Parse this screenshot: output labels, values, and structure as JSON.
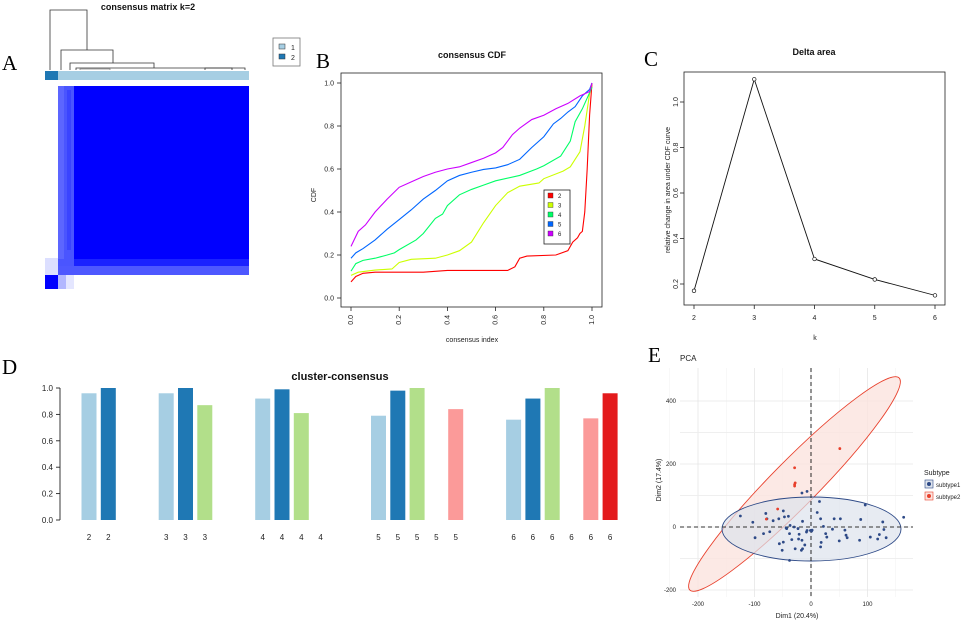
{
  "panel_labels": {
    "a": "A",
    "b": "B",
    "c": "C",
    "d": "D",
    "e": "E"
  },
  "chart_data": [
    {
      "panel": "A",
      "type": "heatmap",
      "title": "consensus matrix k=2",
      "legend": [
        {
          "label": "1",
          "color": "#a6cee3"
        },
        {
          "label": "2",
          "color": "#1f78b4"
        }
      ],
      "legend_placement": "top-right",
      "heat_color": "#0000ff"
    },
    {
      "panel": "B",
      "type": "line",
      "title": "consensus CDF",
      "xlabel": "consensus index",
      "ylabel": "CDF",
      "xlim": [
        0,
        1
      ],
      "ylim": [
        0,
        1
      ],
      "xticks": [
        "0.0",
        "0.2",
        "0.4",
        "0.6",
        "0.8",
        "1.0"
      ],
      "yticks": [
        "0.0",
        "0.2",
        "0.4",
        "0.6",
        "0.8",
        "1.0"
      ],
      "legend_placement": "right",
      "series": [
        {
          "name": "2",
          "color": "#ff0000",
          "points": [
            [
              0,
              0.075
            ],
            [
              0.02,
              0.1
            ],
            [
              0.05,
              0.115
            ],
            [
              0.1,
              0.12
            ],
            [
              0.3,
              0.12
            ],
            [
              0.4,
              0.128
            ],
            [
              0.65,
              0.128
            ],
            [
              0.68,
              0.145
            ],
            [
              0.7,
              0.185
            ],
            [
              0.73,
              0.195
            ],
            [
              0.85,
              0.2
            ],
            [
              0.9,
              0.22
            ],
            [
              0.92,
              0.26
            ],
            [
              0.94,
              0.28
            ],
            [
              0.95,
              0.3
            ],
            [
              0.96,
              0.31
            ],
            [
              0.97,
              0.4
            ],
            [
              0.98,
              0.6
            ],
            [
              0.99,
              0.85
            ],
            [
              1.0,
              1.0
            ]
          ]
        },
        {
          "name": "3",
          "color": "#ccff00",
          "points": [
            [
              0,
              0.105
            ],
            [
              0.03,
              0.12
            ],
            [
              0.1,
              0.13
            ],
            [
              0.17,
              0.135
            ],
            [
              0.2,
              0.165
            ],
            [
              0.25,
              0.18
            ],
            [
              0.35,
              0.185
            ],
            [
              0.4,
              0.2
            ],
            [
              0.45,
              0.22
            ],
            [
              0.5,
              0.26
            ],
            [
              0.55,
              0.35
            ],
            [
              0.6,
              0.43
            ],
            [
              0.65,
              0.49
            ],
            [
              0.7,
              0.52
            ],
            [
              0.78,
              0.535
            ],
            [
              0.8,
              0.555
            ],
            [
              0.88,
              0.59
            ],
            [
              0.91,
              0.61
            ],
            [
              0.95,
              0.68
            ],
            [
              0.97,
              0.8
            ],
            [
              0.99,
              0.95
            ],
            [
              1.0,
              1.0
            ]
          ]
        },
        {
          "name": "4",
          "color": "#00ff66",
          "points": [
            [
              0,
              0.125
            ],
            [
              0.02,
              0.16
            ],
            [
              0.05,
              0.175
            ],
            [
              0.1,
              0.185
            ],
            [
              0.15,
              0.2
            ],
            [
              0.18,
              0.21
            ],
            [
              0.2,
              0.225
            ],
            [
              0.27,
              0.27
            ],
            [
              0.3,
              0.3
            ],
            [
              0.35,
              0.37
            ],
            [
              0.38,
              0.39
            ],
            [
              0.4,
              0.43
            ],
            [
              0.45,
              0.48
            ],
            [
              0.5,
              0.505
            ],
            [
              0.55,
              0.525
            ],
            [
              0.6,
              0.545
            ],
            [
              0.7,
              0.57
            ],
            [
              0.77,
              0.6
            ],
            [
              0.8,
              0.615
            ],
            [
              0.87,
              0.66
            ],
            [
              0.91,
              0.73
            ],
            [
              0.93,
              0.82
            ],
            [
              0.96,
              0.88
            ],
            [
              0.98,
              0.93
            ],
            [
              1.0,
              0.98
            ]
          ]
        },
        {
          "name": "5",
          "color": "#0066ff",
          "points": [
            [
              0,
              0.185
            ],
            [
              0.02,
              0.21
            ],
            [
              0.05,
              0.23
            ],
            [
              0.1,
              0.27
            ],
            [
              0.15,
              0.32
            ],
            [
              0.2,
              0.365
            ],
            [
              0.25,
              0.41
            ],
            [
              0.3,
              0.46
            ],
            [
              0.35,
              0.5
            ],
            [
              0.4,
              0.545
            ],
            [
              0.45,
              0.57
            ],
            [
              0.5,
              0.585
            ],
            [
              0.55,
              0.598
            ],
            [
              0.6,
              0.605
            ],
            [
              0.65,
              0.62
            ],
            [
              0.7,
              0.645
            ],
            [
              0.75,
              0.7
            ],
            [
              0.8,
              0.75
            ],
            [
              0.84,
              0.81
            ],
            [
              0.87,
              0.835
            ],
            [
              0.9,
              0.865
            ],
            [
              0.93,
              0.89
            ],
            [
              0.96,
              0.94
            ],
            [
              0.99,
              0.97
            ],
            [
              1.0,
              1.0
            ]
          ]
        },
        {
          "name": "6",
          "color": "#cc00ff",
          "points": [
            [
              0,
              0.24
            ],
            [
              0.03,
              0.31
            ],
            [
              0.06,
              0.34
            ],
            [
              0.1,
              0.4
            ],
            [
              0.15,
              0.46
            ],
            [
              0.2,
              0.515
            ],
            [
              0.25,
              0.54
            ],
            [
              0.3,
              0.565
            ],
            [
              0.35,
              0.585
            ],
            [
              0.4,
              0.6
            ],
            [
              0.45,
              0.61
            ],
            [
              0.5,
              0.63
            ],
            [
              0.55,
              0.65
            ],
            [
              0.6,
              0.675
            ],
            [
              0.63,
              0.7
            ],
            [
              0.67,
              0.76
            ],
            [
              0.7,
              0.79
            ],
            [
              0.75,
              0.83
            ],
            [
              0.8,
              0.85
            ],
            [
              0.85,
              0.88
            ],
            [
              0.9,
              0.905
            ],
            [
              0.95,
              0.94
            ],
            [
              0.99,
              0.96
            ],
            [
              1.0,
              1.0
            ]
          ]
        }
      ]
    },
    {
      "panel": "C",
      "type": "line",
      "title": "Delta area",
      "xlabel": "k",
      "ylabel": "relative change in area under CDF curve",
      "xticks": [
        "2",
        "3",
        "4",
        "5",
        "6"
      ],
      "yticks": [
        "0.2",
        "0.4",
        "0.6",
        "0.8",
        "1.0"
      ],
      "x": [
        2,
        3,
        4,
        5,
        6
      ],
      "y": [
        0.17,
        1.1,
        0.31,
        0.22,
        0.15
      ]
    },
    {
      "panel": "D",
      "type": "bar",
      "title": "cluster-consensus",
      "ylim": [
        0,
        1
      ],
      "yticks": [
        "0.0",
        "0.2",
        "0.4",
        "0.6",
        "0.8",
        "1.0"
      ],
      "cluster_colors": [
        "#a6cee3",
        "#1f78b4",
        "#b2df8a",
        "#33a02c",
        "#fb9a99",
        "#e31a1c"
      ],
      "groups": [
        {
          "k": "2",
          "values": [
            0.96,
            1.0
          ]
        },
        {
          "k": "3",
          "values": [
            0.96,
            1.0,
            0.87
          ]
        },
        {
          "k": "4",
          "values": [
            0.92,
            0.99,
            0.81,
            null
          ]
        },
        {
          "k": "5",
          "values": [
            0.79,
            0.98,
            1.0,
            null,
            0.84
          ]
        },
        {
          "k": "6",
          "values": [
            0.76,
            0.92,
            1.0,
            null,
            0.77,
            0.96
          ]
        }
      ]
    },
    {
      "panel": "E",
      "type": "scatter",
      "title": "PCA",
      "xlabel": "Dim1 (20.4%)",
      "ylabel": "Dim2 (17.4%)",
      "xticks": [
        "-200",
        "-100",
        "0",
        "100"
      ],
      "yticks": [
        "-200",
        "0",
        "200",
        "400"
      ],
      "legend_title": "Subtype",
      "legend_placement": "right",
      "series": [
        {
          "name": "subtype1",
          "color": "#2e4a87",
          "fill": "#dde3ec",
          "points": [
            [
              -125,
              35
            ],
            [
              -103,
              15
            ],
            [
              -99,
              -34
            ],
            [
              -80,
              43
            ],
            [
              -78,
              26
            ],
            [
              -84,
              -21
            ],
            [
              -73,
              -15
            ],
            [
              -67,
              20
            ],
            [
              -57,
              26
            ],
            [
              -49,
              51
            ],
            [
              -40,
              34
            ],
            [
              -47,
              32
            ],
            [
              -44,
              -3
            ],
            [
              -56,
              -53
            ],
            [
              -49,
              -48
            ],
            [
              -51,
              -74
            ],
            [
              -43,
              -5
            ],
            [
              -38,
              -21
            ],
            [
              -34,
              -40
            ],
            [
              -28,
              -69
            ],
            [
              -23,
              -5
            ],
            [
              -21,
              -23
            ],
            [
              -16,
              -42
            ],
            [
              -15,
              -69
            ],
            [
              -17,
              -74
            ],
            [
              -11,
              -57
            ],
            [
              -15,
              18
            ],
            [
              -8,
              -16
            ],
            [
              -7,
              -11
            ],
            [
              -1,
              -11
            ],
            [
              2,
              -10
            ],
            [
              1,
              -13
            ],
            [
              -16,
              108
            ],
            [
              -7,
              113
            ],
            [
              11,
              46
            ],
            [
              17,
              26
            ],
            [
              15,
              81
            ],
            [
              18,
              -49
            ],
            [
              17,
              -63
            ],
            [
              22,
              2
            ],
            [
              26,
              -21
            ],
            [
              28,
              -32
            ],
            [
              38,
              -7
            ],
            [
              41,
              26
            ],
            [
              52,
              26
            ],
            [
              50,
              -44
            ],
            [
              60,
              -10
            ],
            [
              62,
              -26
            ],
            [
              64,
              -34
            ],
            [
              86,
              -42
            ],
            [
              88,
              24
            ],
            [
              96,
              70
            ],
            [
              105,
              -32
            ],
            [
              118,
              -38
            ],
            [
              121,
              -24
            ],
            [
              127,
              16
            ],
            [
              129,
              -8
            ],
            [
              133,
              -34
            ],
            [
              164,
              31
            ],
            [
              -38,
              -106
            ],
            [
              -37,
              5
            ],
            [
              -30,
              0
            ],
            [
              -22,
              -38
            ]
          ]
        },
        {
          "name": "subtype2",
          "color": "#e8402c",
          "fill": "#fbe3de",
          "points": [
            [
              -29,
              188
            ],
            [
              -29,
              135
            ],
            [
              -28,
              140
            ],
            [
              -29,
              130
            ],
            [
              51,
              249
            ],
            [
              -59,
              57
            ],
            [
              -79,
              25
            ]
          ]
        }
      ]
    }
  ]
}
